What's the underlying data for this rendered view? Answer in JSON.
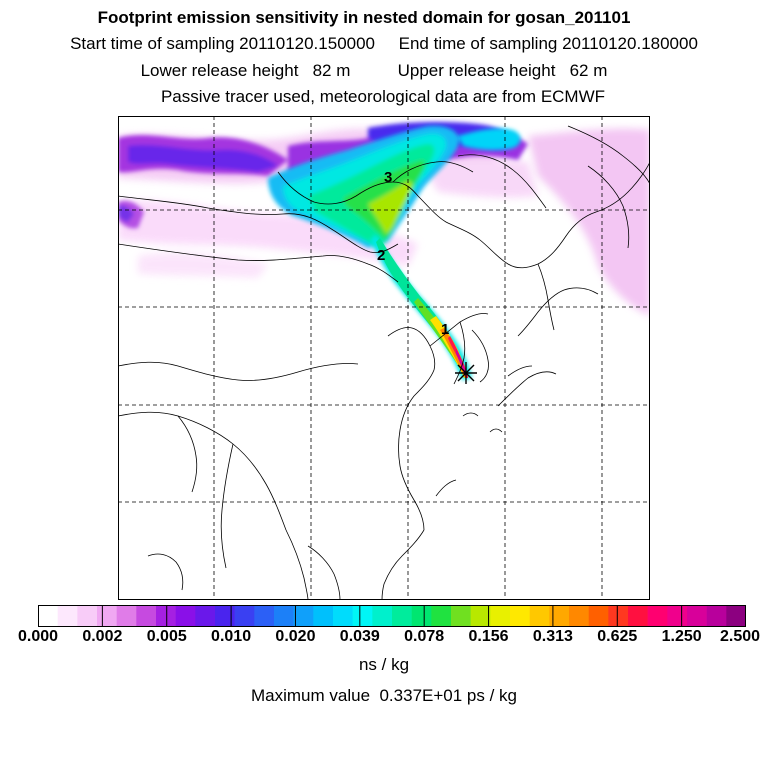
{
  "header": {
    "title": "Footprint emission sensitivity in nested domain for gosan_201101",
    "line2": "Start time of sampling 20110120.150000     End time of sampling 20110120.180000",
    "line3": "Lower release height   82 m          Upper release height   62 m",
    "line4": "Passive tracer used, meteorological data are from ECMWF"
  },
  "map": {
    "trajectory_labels": [
      "1",
      "2",
      "3"
    ],
    "release_marker": "asterisk-icon"
  },
  "colorbar": {
    "ticks": [
      "0.000",
      "0.002",
      "0.005",
      "0.010",
      "0.020",
      "0.039",
      "0.078",
      "0.156",
      "0.313",
      "0.625",
      "1.250",
      "2.500"
    ],
    "colors": [
      "#ffffff",
      "#fde8fd",
      "#f8ccf8",
      "#f0a8f2",
      "#e07ce8",
      "#c64ae0",
      "#a520e2",
      "#8a10e8",
      "#6a18ea",
      "#4a24ee",
      "#3a40f2",
      "#2c60f6",
      "#1c80f8",
      "#10a0fa",
      "#00c0fc",
      "#00dcfc",
      "#00f6f6",
      "#00f0cc",
      "#00ec9c",
      "#00e670",
      "#20e240",
      "#70e020",
      "#b8e800",
      "#e8f000",
      "#ffe800",
      "#ffc800",
      "#ffa800",
      "#ff8800",
      "#ff6000",
      "#ff3820",
      "#ff1040",
      "#ff0070",
      "#f0008c",
      "#d8009a",
      "#b8009c",
      "#8c0080"
    ],
    "units": "ns / kg",
    "max_value_text": "Maximum value  0.337E+01 ps / kg"
  }
}
